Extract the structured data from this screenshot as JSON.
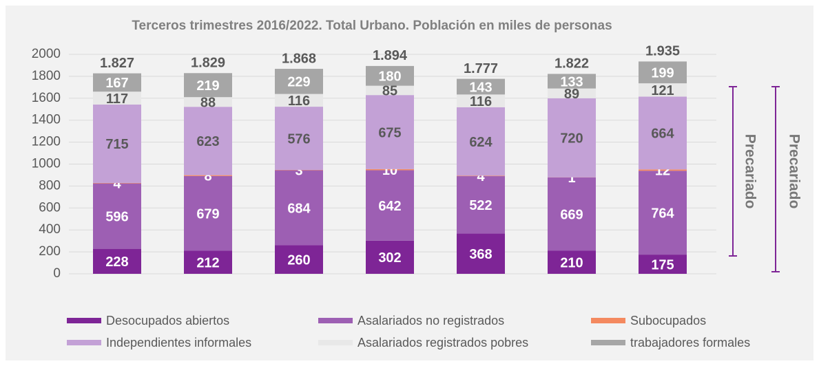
{
  "chart_data": {
    "type": "stacked_bar",
    "title": "Terceros trimestres 2016/2022. Total Urbano. Población en miles de personas",
    "series": [
      {
        "name": "Desocupados abiertos",
        "color": "#7e2596",
        "values": [
          228,
          212,
          260,
          302,
          368,
          210,
          175
        ]
      },
      {
        "name": "Asalariados no registrados",
        "color": "#9d5fb3",
        "values": [
          596,
          679,
          684,
          642,
          522,
          669,
          764
        ]
      },
      {
        "name": "Subocupados",
        "color": "#f4895f",
        "values": [
          4,
          8,
          3,
          10,
          4,
          1,
          12
        ]
      },
      {
        "name": "Independientes informales",
        "color": "#c3a1d6",
        "values": [
          715,
          623,
          576,
          675,
          624,
          720,
          664
        ]
      },
      {
        "name": "Asalariados registrados pobres",
        "color": "#e8e8e8",
        "values": [
          117,
          88,
          116,
          85,
          116,
          89,
          121
        ]
      },
      {
        "name": "trabajadores formales",
        "color": "#a6a6a6",
        "values": [
          167,
          219,
          229,
          180,
          143,
          133,
          199
        ]
      }
    ],
    "totals": {
      "values": [
        1827,
        1829,
        1868,
        1894,
        1777,
        1822,
        1935
      ],
      "value_labels": [
        "1.827",
        "1.829",
        "1.868",
        "1.894",
        "1.777",
        "1.822",
        "1.935"
      ]
    },
    "annotations": [
      "Precariado",
      "Precariado"
    ],
    "ylim": [
      0,
      2000
    ],
    "yticks": [
      0,
      200,
      400,
      600,
      800,
      1000,
      1200,
      1400,
      1600,
      1800,
      2000
    ],
    "grid": true
  }
}
